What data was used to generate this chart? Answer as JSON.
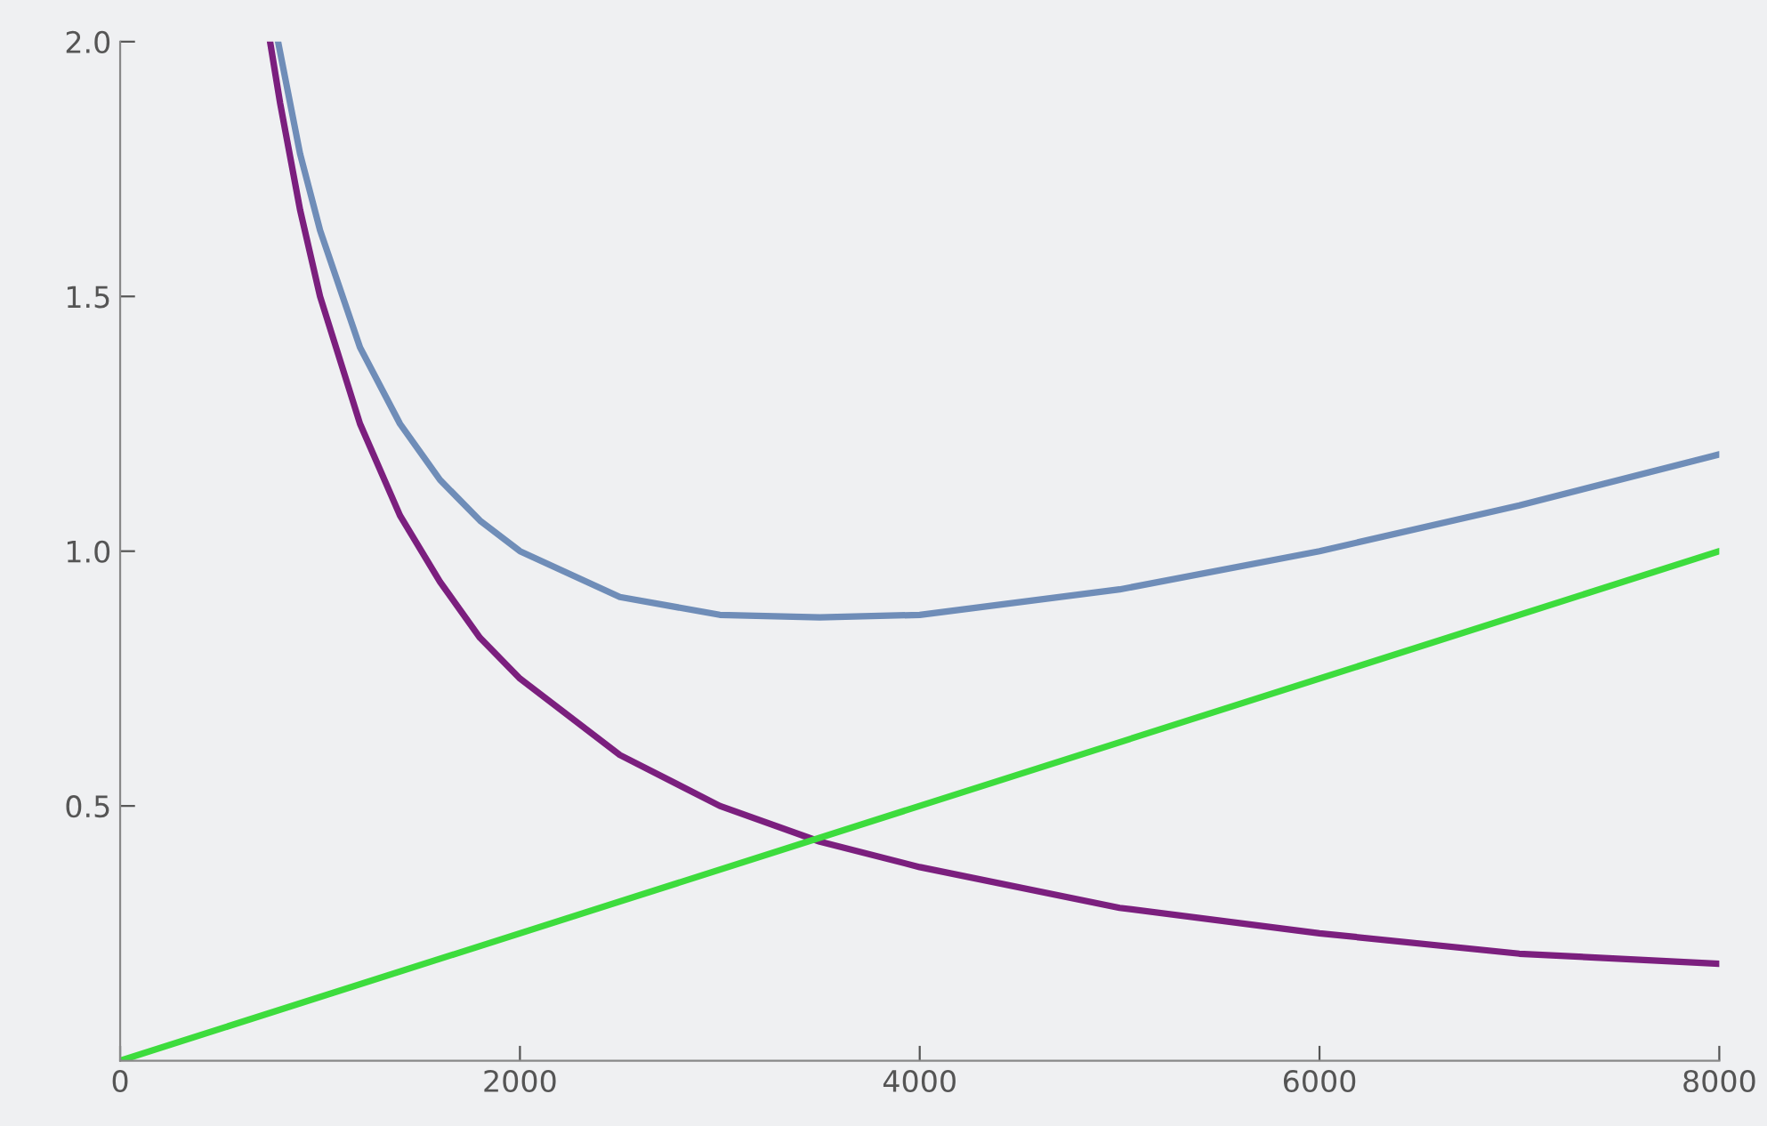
{
  "chart_data": {
    "type": "line",
    "series": [
      {
        "color": "#6f8db8",
        "x": [
          790,
          900,
          1000,
          1200,
          1400,
          1600,
          1800,
          2000,
          2500,
          3000,
          3500,
          4000,
          5000,
          6000,
          7000,
          8000
        ],
        "values": [
          2.0,
          1.78,
          1.63,
          1.4,
          1.25,
          1.14,
          1.06,
          1.0,
          0.91,
          0.875,
          0.87,
          0.875,
          0.925,
          1.0,
          1.09,
          1.19
        ]
      },
      {
        "color": "#7b1f7e",
        "x": [
          750,
          800,
          900,
          1000,
          1200,
          1400,
          1600,
          1800,
          2000,
          2500,
          3000,
          3500,
          4000,
          5000,
          6000,
          7000,
          8000
        ],
        "values": [
          2.0,
          1.88,
          1.67,
          1.5,
          1.25,
          1.07,
          0.94,
          0.83,
          0.75,
          0.6,
          0.5,
          0.43,
          0.38,
          0.3,
          0.25,
          0.21,
          0.19
        ]
      },
      {
        "color": "#3ddc3d",
        "x": [
          0,
          8000
        ],
        "values": [
          0.0,
          1.0
        ]
      }
    ],
    "xlim": [
      0,
      8000
    ],
    "ylim": [
      0,
      2.0
    ],
    "xticks": [
      0,
      2000,
      4000,
      6000,
      8000
    ],
    "yticks": [
      {
        "value": 0.5,
        "label": "0.5"
      },
      {
        "value": 1.0,
        "label": "1.0"
      },
      {
        "value": 1.5,
        "label": "1.5"
      },
      {
        "value": 2.0,
        "label": "2.0"
      }
    ],
    "grid": false,
    "legend": false
  }
}
